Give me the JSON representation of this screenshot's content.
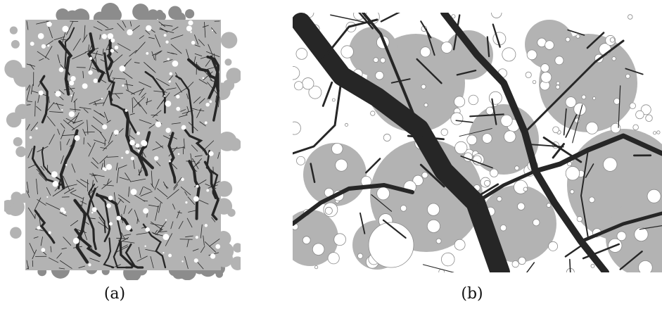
{
  "captions": {
    "a": "(a)",
    "b": "(b)"
  },
  "colors": {
    "grain_fill": "#b3b3b3",
    "grain_dark": "#8c8c8c",
    "network": "#262626",
    "pore": "#ffffff",
    "outline": "#8a8a8a"
  }
}
